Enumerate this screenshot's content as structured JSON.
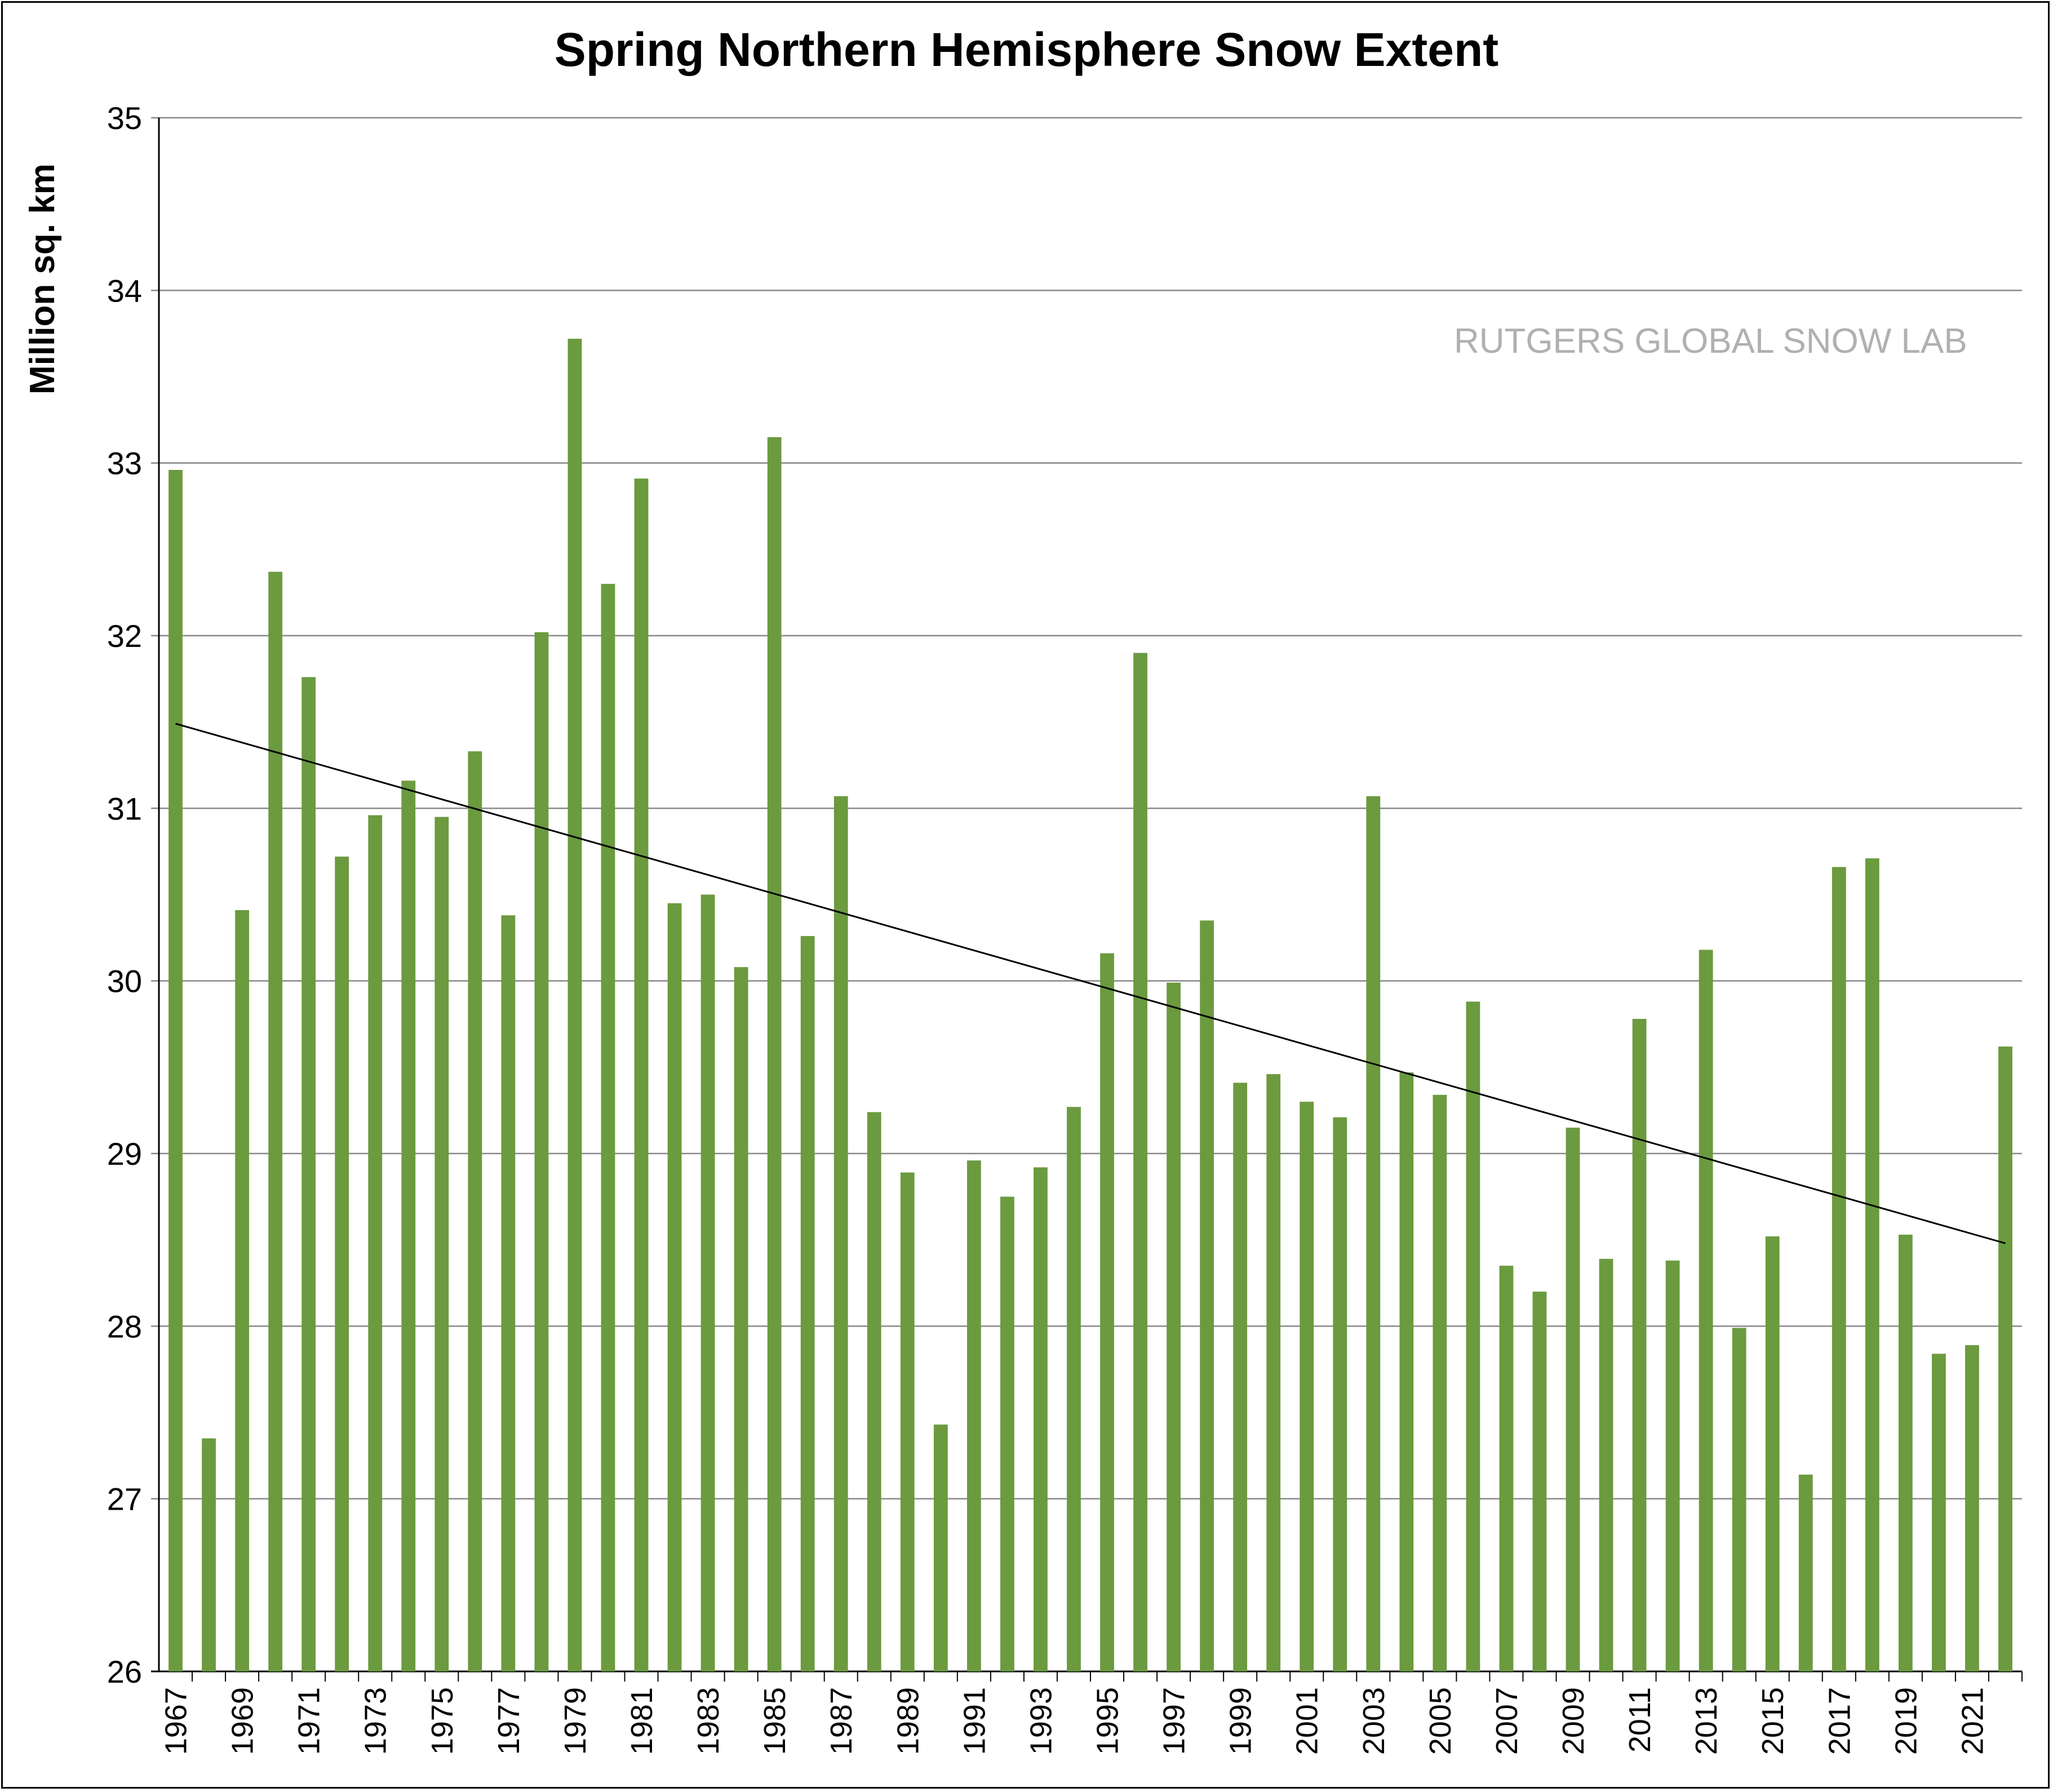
{
  "chart_data": {
    "type": "bar",
    "title": "Spring Northern Hemisphere Snow Extent",
    "xlabel": "",
    "ylabel": "Million sq. km",
    "watermark": "RUTGERS GLOBAL SNOW LAB",
    "ylim": [
      26,
      35
    ],
    "yticks": [
      26,
      27,
      28,
      29,
      30,
      31,
      32,
      33,
      34,
      35
    ],
    "grid": true,
    "bar_color": "#6b9a3f",
    "categories": [
      1967,
      1968,
      1969,
      1970,
      1971,
      1972,
      1973,
      1974,
      1975,
      1976,
      1977,
      1978,
      1979,
      1980,
      1981,
      1982,
      1983,
      1984,
      1985,
      1986,
      1987,
      1988,
      1989,
      1990,
      1991,
      1992,
      1993,
      1994,
      1995,
      1996,
      1997,
      1998,
      1999,
      2000,
      2001,
      2002,
      2003,
      2004,
      2005,
      2006,
      2007,
      2008,
      2009,
      2010,
      2011,
      2012,
      2013,
      2014,
      2015,
      2016,
      2017,
      2018,
      2019,
      2020,
      2021,
      2022
    ],
    "xtick_labels": [
      "1967",
      "1969",
      "1971",
      "1973",
      "1975",
      "1977",
      "1979",
      "1981",
      "1983",
      "1985",
      "1987",
      "1989",
      "1991",
      "1993",
      "1995",
      "1997",
      "1999",
      "2001",
      "2003",
      "2005",
      "2007",
      "2009",
      "2011",
      "2013",
      "2015",
      "2017",
      "2019",
      "2021"
    ],
    "values": [
      32.96,
      27.35,
      30.41,
      32.37,
      31.76,
      30.72,
      30.96,
      31.16,
      30.95,
      31.33,
      30.38,
      32.02,
      33.72,
      32.3,
      32.91,
      30.45,
      30.5,
      30.08,
      33.15,
      30.26,
      31.07,
      29.24,
      28.89,
      27.43,
      28.96,
      28.75,
      28.92,
      29.27,
      30.16,
      31.9,
      29.99,
      30.35,
      29.41,
      29.46,
      29.3,
      29.21,
      31.07,
      29.47,
      29.34,
      29.88,
      28.35,
      28.2,
      29.15,
      28.39,
      29.78,
      28.38,
      30.18,
      27.99,
      28.52,
      27.14,
      30.66,
      30.71,
      28.53,
      27.84,
      27.89,
      29.62
    ],
    "trendline": {
      "type": "linear",
      "start": 31.49,
      "end": 28.48
    }
  }
}
